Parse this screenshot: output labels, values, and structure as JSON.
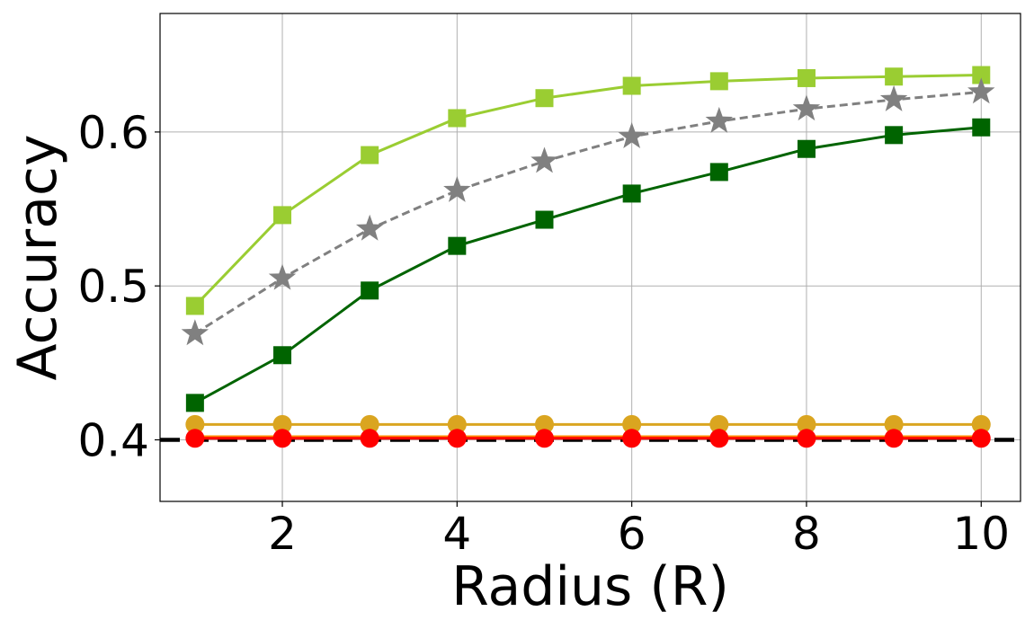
{
  "chart_data": {
    "type": "line",
    "xlabel": "Radius (R)",
    "ylabel": "Accuracy",
    "xlim": [
      0.6,
      10.45
    ],
    "ylim": [
      0.36,
      0.677
    ],
    "grid": true,
    "x_ticks": [
      2,
      4,
      6,
      8,
      10
    ],
    "x_tick_labels": [
      "2",
      "4",
      "6",
      "8",
      "10"
    ],
    "y_ticks": [
      0.4,
      0.5,
      0.6
    ],
    "y_tick_labels": [
      "0.4",
      "0.5",
      "0.6"
    ],
    "x": [
      1,
      2,
      3,
      4,
      5,
      6,
      7,
      8,
      9,
      10
    ],
    "reference_line": {
      "y": 0.4,
      "color": "#000000",
      "style": "dashed"
    },
    "series": [
      {
        "color": "#9acd32",
        "marker": "square",
        "line_style": "solid",
        "values": [
          0.487,
          0.546,
          0.585,
          0.609,
          0.622,
          0.63,
          0.633,
          0.635,
          0.636,
          0.637
        ]
      },
      {
        "color": "#808080",
        "marker": "star",
        "line_style": "dashed",
        "values": [
          0.469,
          0.505,
          0.537,
          0.562,
          0.581,
          0.597,
          0.607,
          0.615,
          0.621,
          0.626
        ]
      },
      {
        "color": "#006400",
        "marker": "square",
        "line_style": "solid",
        "values": [
          0.424,
          0.455,
          0.497,
          0.526,
          0.543,
          0.56,
          0.574,
          0.589,
          0.598,
          0.603
        ]
      },
      {
        "color": "#daa520",
        "marker": "circle",
        "line_style": "solid",
        "values": [
          0.41,
          0.41,
          0.41,
          0.41,
          0.41,
          0.41,
          0.41,
          0.41,
          0.41,
          0.41
        ]
      },
      {
        "color": "#ff8c00",
        "marker": "none",
        "line_style": "solid",
        "values": [
          0.402,
          0.402,
          0.402,
          0.402,
          0.402,
          0.402,
          0.402,
          0.402,
          0.402,
          0.402
        ]
      },
      {
        "color": "#ff0000",
        "marker": "circle",
        "line_style": "solid",
        "values": [
          0.401,
          0.401,
          0.401,
          0.401,
          0.401,
          0.401,
          0.401,
          0.401,
          0.401,
          0.401
        ]
      }
    ]
  }
}
